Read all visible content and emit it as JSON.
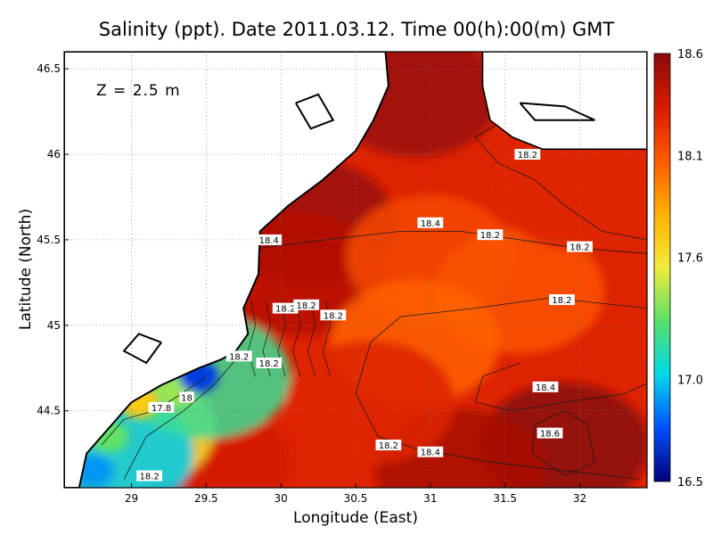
{
  "chart_data": {
    "type": "heatmap",
    "title": "Salinity (ppt). Date 2011.03.12. Time 00(h):00(m) GMT",
    "xlabel": "Longitude (East)",
    "ylabel": "Latitude (North)",
    "annotation": "Z = 2.5 m",
    "xlim": [
      28.55,
      32.45
    ],
    "ylim": [
      44.05,
      46.6
    ],
    "x_ticks": [
      "29",
      "29.5",
      "30",
      "30.5",
      "31",
      "31.5",
      "32"
    ],
    "x_tick_values": [
      29,
      29.5,
      30,
      30.5,
      31,
      31.5,
      32
    ],
    "y_ticks": [
      "44.5",
      "45",
      "45.5",
      "46",
      "46.5"
    ],
    "y_tick_values": [
      44.5,
      45,
      45.5,
      46,
      46.5
    ],
    "grid": true,
    "colorbar": {
      "range": [
        16.5,
        18.6
      ],
      "ticks": [
        "16.5",
        "17.0",
        "17.6",
        "18.1",
        "18.6"
      ],
      "tick_values": [
        16.5,
        17.0,
        17.6,
        18.1,
        18.6
      ],
      "colors": [
        "#00007a",
        "#0050ff",
        "#00d8e8",
        "#5ae06a",
        "#f0ec3a",
        "#ffb000",
        "#ff5a00",
        "#d81a00",
        "#8a0a0a"
      ]
    },
    "contour_labels": [
      {
        "text": "18.2",
        "lon": 31.65,
        "lat": 46.0
      },
      {
        "text": "18.4",
        "lon": 31.0,
        "lat": 45.6
      },
      {
        "text": "18.2",
        "lon": 31.4,
        "lat": 45.53
      },
      {
        "text": "18.2",
        "lon": 32.0,
        "lat": 45.46
      },
      {
        "text": "18.4",
        "lon": 29.92,
        "lat": 45.5
      },
      {
        "text": "18.2",
        "lon": 30.03,
        "lat": 45.1
      },
      {
        "text": "18.2",
        "lon": 30.17,
        "lat": 45.12
      },
      {
        "text": "18.2",
        "lon": 30.35,
        "lat": 45.06
      },
      {
        "text": "18.2",
        "lon": 31.88,
        "lat": 45.15
      },
      {
        "text": "18.2",
        "lon": 29.72,
        "lat": 44.82
      },
      {
        "text": "18.2",
        "lon": 29.92,
        "lat": 44.78
      },
      {
        "text": "18",
        "lon": 29.37,
        "lat": 44.58
      },
      {
        "text": "17.8",
        "lon": 29.2,
        "lat": 44.52
      },
      {
        "text": "18.4",
        "lon": 31.77,
        "lat": 44.64
      },
      {
        "text": "18.2",
        "lon": 30.72,
        "lat": 44.3
      },
      {
        "text": "18.4",
        "lon": 31.0,
        "lat": 44.26
      },
      {
        "text": "18.6",
        "lon": 31.8,
        "lat": 44.37
      },
      {
        "text": "18.2",
        "lon": 29.12,
        "lat": 44.12
      }
    ],
    "fields": [
      {
        "lon": 30.2,
        "lat": 45.6,
        "value": 18.55
      },
      {
        "lon": 30.9,
        "lat": 46.35,
        "value": 18.55
      },
      {
        "lon": 30.1,
        "lat": 45.3,
        "value": 18.45
      },
      {
        "lon": 31.0,
        "lat": 45.4,
        "value": 18.15
      },
      {
        "lon": 31.6,
        "lat": 45.2,
        "value": 18.1
      },
      {
        "lon": 30.9,
        "lat": 44.9,
        "value": 18.05
      },
      {
        "lon": 32.0,
        "lat": 45.8,
        "value": 18.3
      },
      {
        "lon": 31.9,
        "lat": 44.3,
        "value": 18.62
      },
      {
        "lon": 31.2,
        "lat": 44.15,
        "value": 18.5
      },
      {
        "lon": 29.5,
        "lat": 44.2,
        "value": 18.35
      },
      {
        "lon": 29.0,
        "lat": 44.4,
        "value": 17.6
      },
      {
        "lon": 28.85,
        "lat": 44.25,
        "value": 17.0
      },
      {
        "lon": 29.5,
        "lat": 44.7,
        "value": 17.2
      },
      {
        "lon": 30.6,
        "lat": 44.55,
        "value": 18.3
      }
    ]
  }
}
